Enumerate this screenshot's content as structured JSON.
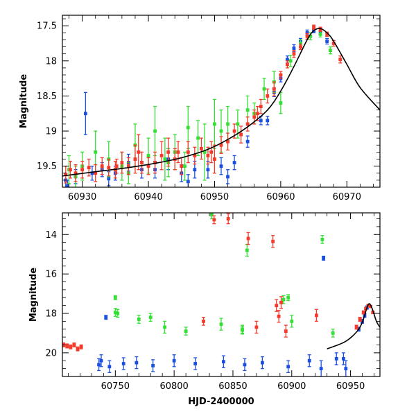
{
  "colors": {
    "red": "#f5392a",
    "green": "#35e035",
    "blue": "#1a4fe0",
    "model": "#000000"
  },
  "chart_data": [
    {
      "id": "top",
      "type": "scatter",
      "title": "",
      "xlabel": "",
      "ylabel": "Magnitude",
      "xlim": [
        60927,
        60975
      ],
      "ylim": [
        19.8,
        17.35
      ],
      "xticks": [
        60930,
        60940,
        60950,
        60960,
        60970
      ],
      "yticks": [
        17.5,
        18,
        18.5,
        19,
        19.5
      ],
      "model_curve": {
        "name": "model",
        "x": [
          60927,
          60932,
          60937,
          60941,
          60945,
          60949,
          60952,
          60955,
          60958,
          60960,
          60962,
          60964,
          60965,
          60966,
          60967,
          60968,
          60970,
          60972,
          60975
        ],
        "y": [
          19.64,
          19.58,
          19.52,
          19.46,
          19.38,
          19.26,
          19.12,
          18.94,
          18.7,
          18.43,
          18.08,
          17.7,
          17.57,
          17.54,
          17.6,
          17.72,
          18.05,
          18.38,
          18.7
        ]
      },
      "series": [
        {
          "name": "red",
          "points": [
            [
              60927.5,
              19.62,
              0.12
            ],
            [
              60928.2,
              19.55,
              0.12
            ],
            [
              60929.0,
              19.6,
              0.12
            ],
            [
              60930.0,
              19.55,
              0.12
            ],
            [
              60931.0,
              19.52,
              0.12
            ],
            [
              60932.0,
              19.6,
              0.12
            ],
            [
              60933.0,
              19.5,
              0.12
            ],
            [
              60934.0,
              19.52,
              0.12
            ],
            [
              60935.0,
              19.55,
              0.12
            ],
            [
              60936.0,
              19.45,
              0.15
            ],
            [
              60937.0,
              19.5,
              0.12
            ],
            [
              60938.0,
              19.4,
              0.2
            ],
            [
              60938.5,
              19.3,
              0.25
            ],
            [
              60939.0,
              19.45,
              0.15
            ],
            [
              60940.0,
              19.5,
              0.12
            ],
            [
              60941.0,
              19.45,
              0.15
            ],
            [
              60942.0,
              19.35,
              0.2
            ],
            [
              60943.0,
              19.3,
              0.2
            ],
            [
              60944.0,
              19.4,
              0.15
            ],
            [
              60945.0,
              19.5,
              0.12
            ],
            [
              60946.0,
              19.3,
              0.15
            ],
            [
              60947.0,
              19.35,
              0.12
            ],
            [
              60948.0,
              19.25,
              0.15
            ],
            [
              60949.0,
              19.35,
              0.12
            ],
            [
              60950.0,
              19.4,
              0.2
            ],
            [
              60951.0,
              19.2,
              0.12
            ],
            [
              60952.0,
              19.15,
              0.12
            ],
            [
              60953.0,
              19.0,
              0.1
            ],
            [
              60954.0,
              19.05,
              0.12
            ],
            [
              60955.0,
              18.9,
              0.1
            ],
            [
              60956.0,
              18.8,
              0.1
            ],
            [
              60957.0,
              18.65,
              0.1
            ],
            [
              60958.0,
              18.5,
              0.1
            ],
            [
              60959.0,
              18.4,
              0.1
            ],
            [
              60960.0,
              18.2,
              0.05
            ],
            [
              60961.0,
              18.05,
              0.05
            ],
            [
              60962.0,
              17.9,
              0.05
            ],
            [
              60963.0,
              17.8,
              0.04
            ],
            [
              60964.0,
              17.65,
              0.04
            ],
            [
              60965.0,
              17.52,
              0.03
            ],
            [
              60966.0,
              17.55,
              0.03
            ],
            [
              60967.0,
              17.62,
              0.03
            ],
            [
              60968.0,
              17.75,
              0.04
            ],
            [
              60969.0,
              17.98,
              0.05
            ],
            [
              60935.2,
              19.5,
              0.1
            ],
            [
              60944.5,
              19.3,
              0.15
            ],
            [
              60949.5,
              19.3,
              0.15
            ],
            [
              60956.5,
              18.75,
              0.1
            ]
          ]
        },
        {
          "name": "green",
          "points": [
            [
              60928.0,
              19.55,
              0.2
            ],
            [
              60930.0,
              19.5,
              0.2
            ],
            [
              60932.0,
              19.3,
              0.3
            ],
            [
              60934.0,
              19.4,
              0.25
            ],
            [
              60936.0,
              19.5,
              0.2
            ],
            [
              60938.0,
              19.2,
              0.3
            ],
            [
              60940.0,
              19.35,
              0.25
            ],
            [
              60941.0,
              19.0,
              0.35
            ],
            [
              60942.5,
              19.4,
              0.3
            ],
            [
              60944.0,
              19.3,
              0.25
            ],
            [
              60945.5,
              19.5,
              0.2
            ],
            [
              60946.0,
              18.95,
              0.3
            ],
            [
              60947.5,
              19.1,
              0.25
            ],
            [
              60948.5,
              19.3,
              0.4
            ],
            [
              60950.0,
              18.9,
              0.35
            ],
            [
              60951.0,
              19.0,
              0.3
            ],
            [
              60952.0,
              18.9,
              0.25
            ],
            [
              60953.5,
              18.9,
              0.2
            ],
            [
              60955.0,
              18.7,
              0.2
            ],
            [
              60956.0,
              18.75,
              0.15
            ],
            [
              60957.5,
              18.4,
              0.15
            ],
            [
              60959.0,
              18.3,
              0.15
            ],
            [
              60960.0,
              18.6,
              0.15
            ],
            [
              60961.5,
              18.0,
              0.08
            ],
            [
              60963.0,
              17.75,
              0.05
            ],
            [
              60964.5,
              17.65,
              0.05
            ],
            [
              60966.0,
              17.62,
              0.04
            ],
            [
              60967.5,
              17.85,
              0.05
            ],
            [
              60929.0,
              19.65,
              0.15
            ],
            [
              60937.0,
              19.6,
              0.15
            ],
            [
              60943.0,
              19.45,
              0.2
            ]
          ]
        },
        {
          "name": "blue",
          "points": [
            [
              60927.5,
              19.7,
              0.1
            ],
            [
              60929.0,
              19.65,
              0.1
            ],
            [
              60930.5,
              18.75,
              0.3
            ],
            [
              60931.5,
              19.6,
              0.1
            ],
            [
              60933.0,
              19.55,
              0.1
            ],
            [
              60935.0,
              19.6,
              0.1
            ],
            [
              60937.0,
              19.45,
              0.12
            ],
            [
              60939.0,
              19.55,
              0.12
            ],
            [
              60941.0,
              19.55,
              0.12
            ],
            [
              60943.0,
              19.4,
              0.15
            ],
            [
              60945.0,
              19.6,
              0.12
            ],
            [
              60947.0,
              19.55,
              0.12
            ],
            [
              60949.0,
              19.55,
              0.12
            ],
            [
              60951.0,
              19.5,
              0.12
            ],
            [
              60953.0,
              19.45,
              0.1
            ],
            [
              60955.0,
              19.15,
              0.08
            ],
            [
              60957.0,
              18.85,
              0.06
            ],
            [
              60958.0,
              18.85,
              0.06
            ],
            [
              60959.0,
              18.45,
              0.06
            ],
            [
              60960.0,
              18.25,
              0.05
            ],
            [
              60961.0,
              17.98,
              0.05
            ],
            [
              60962.0,
              17.82,
              0.05
            ],
            [
              60963.0,
              17.72,
              0.04
            ],
            [
              60964.0,
              17.6,
              0.04
            ],
            [
              60965.0,
              17.57,
              0.03
            ],
            [
              60966.0,
              17.6,
              0.03
            ],
            [
              60967.0,
              17.72,
              0.04
            ],
            [
              60927.8,
              19.78,
              0.08
            ],
            [
              60934.0,
              19.68,
              0.1
            ],
            [
              60946.0,
              19.72,
              0.1
            ],
            [
              60952.0,
              19.65,
              0.1
            ]
          ]
        }
      ]
    },
    {
      "id": "bottom",
      "type": "scatter",
      "title": "",
      "xlabel": "HJD-2400000",
      "ylabel": "Magnitude",
      "xlim": [
        60705,
        60975
      ],
      "ylim": [
        21.2,
        12.9
      ],
      "xticks": [
        60750,
        60800,
        60850,
        60900,
        60950
      ],
      "yticks": [
        14,
        16,
        18,
        20
      ],
      "model_curve": {
        "name": "model",
        "x": [
          60930,
          60945,
          60955,
          60960,
          60965,
          60968,
          60972,
          60975
        ],
        "y": [
          19.8,
          19.45,
          18.95,
          18.45,
          17.56,
          17.7,
          18.4,
          18.7
        ]
      },
      "series": [
        {
          "name": "red",
          "points": [
            [
              60706,
              19.6,
              0.1
            ],
            [
              60709,
              19.65,
              0.1
            ],
            [
              60712,
              19.7,
              0.1
            ],
            [
              60715,
              19.6,
              0.1
            ],
            [
              60718,
              19.8,
              0.1
            ],
            [
              60721,
              19.7,
              0.1
            ],
            [
              60834,
              13.25,
              0.2
            ],
            [
              60846,
              13.2,
              0.25
            ],
            [
              60863,
              14.2,
              0.3
            ],
            [
              60884,
              14.35,
              0.3
            ],
            [
              60887,
              17.6,
              0.3
            ],
            [
              60889,
              18.15,
              0.3
            ],
            [
              60891,
              17.45,
              0.3
            ],
            [
              60921,
              18.1,
              0.3
            ],
            [
              60825,
              18.4,
              0.2
            ],
            [
              60870,
              18.7,
              0.3
            ],
            [
              60895,
              18.9,
              0.3
            ],
            [
              60955,
              18.7,
              0.1
            ],
            [
              60958,
              18.3,
              0.1
            ],
            [
              60961,
              17.95,
              0.08
            ],
            [
              60963,
              17.75,
              0.06
            ],
            [
              60965,
              17.6,
              0.05
            ],
            [
              60967,
              17.65,
              0.05
            ],
            [
              60969,
              17.95,
              0.06
            ]
          ]
        },
        {
          "name": "green",
          "points": [
            [
              60832,
              13.0,
              0.2
            ],
            [
              60862,
              14.8,
              0.3
            ],
            [
              60926,
              14.25,
              0.2
            ],
            [
              60750,
              17.2,
              0.1
            ],
            [
              60750,
              17.95,
              0.2
            ],
            [
              60752,
              18.0,
              0.2
            ],
            [
              60770,
              18.3,
              0.2
            ],
            [
              60780,
              18.2,
              0.2
            ],
            [
              60792,
              18.7,
              0.3
            ],
            [
              60840,
              18.55,
              0.3
            ],
            [
              60858,
              18.8,
              0.2
            ],
            [
              60893,
              17.3,
              0.2
            ],
            [
              60897,
              17.2,
              0.15
            ],
            [
              60900,
              18.4,
              0.3
            ],
            [
              60810,
              18.9,
              0.2
            ],
            [
              60858,
              18.85,
              0.2
            ],
            [
              60935,
              19.0,
              0.2
            ]
          ]
        },
        {
          "name": "blue",
          "points": [
            [
              60742,
              18.2,
              0.1
            ],
            [
              60927,
              15.2,
              0.1
            ],
            [
              60736,
              20.6,
              0.3
            ],
            [
              60738,
              20.4,
              0.3
            ],
            [
              60745,
              20.7,
              0.3
            ],
            [
              60757,
              20.55,
              0.3
            ],
            [
              60768,
              20.5,
              0.3
            ],
            [
              60782,
              20.65,
              0.3
            ],
            [
              60800,
              20.4,
              0.3
            ],
            [
              60818,
              20.55,
              0.3
            ],
            [
              60842,
              20.45,
              0.3
            ],
            [
              60860,
              20.6,
              0.3
            ],
            [
              60875,
              20.5,
              0.3
            ],
            [
              60897,
              20.7,
              0.3
            ],
            [
              60915,
              20.4,
              0.3
            ],
            [
              60925,
              20.8,
              0.4
            ],
            [
              60938,
              20.3,
              0.3
            ],
            [
              60944,
              20.3,
              0.3
            ],
            [
              60946,
              20.8,
              0.4
            ],
            [
              60957,
              18.8,
              0.1
            ],
            [
              60960,
              18.4,
              0.1
            ],
            [
              60962,
              18.1,
              0.1
            ],
            [
              60964,
              17.7,
              0.08
            ]
          ]
        }
      ]
    }
  ]
}
